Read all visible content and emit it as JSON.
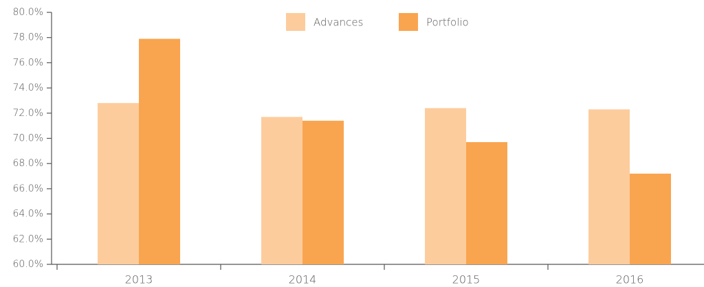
{
  "chart_data": {
    "type": "bar",
    "categories": [
      "2013",
      "2014",
      "2015",
      "2016"
    ],
    "series": [
      {
        "name": "Advances",
        "color": "#fdcc9d",
        "values": [
          72.8,
          71.7,
          72.4,
          72.3
        ]
      },
      {
        "name": "Portfolio",
        "color": "#f9a54f",
        "values": [
          77.9,
          71.4,
          69.7,
          67.2
        ]
      }
    ],
    "ylim": [
      60,
      80
    ],
    "yticks": [
      {
        "value": 60,
        "label": "60.0%"
      },
      {
        "value": 62,
        "label": "62.0%"
      },
      {
        "value": 64,
        "label": "64.0%"
      },
      {
        "value": 66,
        "label": "66.0%"
      },
      {
        "value": 68,
        "label": "68.0%"
      },
      {
        "value": 70,
        "label": "70.0%"
      },
      {
        "value": 72,
        "label": "72.0%"
      },
      {
        "value": 74,
        "label": "74.0%"
      },
      {
        "value": 76,
        "label": "76.0%"
      },
      {
        "value": 78,
        "label": "78.0%"
      },
      {
        "value": 80,
        "label": "80.0%"
      }
    ],
    "grid": false,
    "legend": "top"
  }
}
